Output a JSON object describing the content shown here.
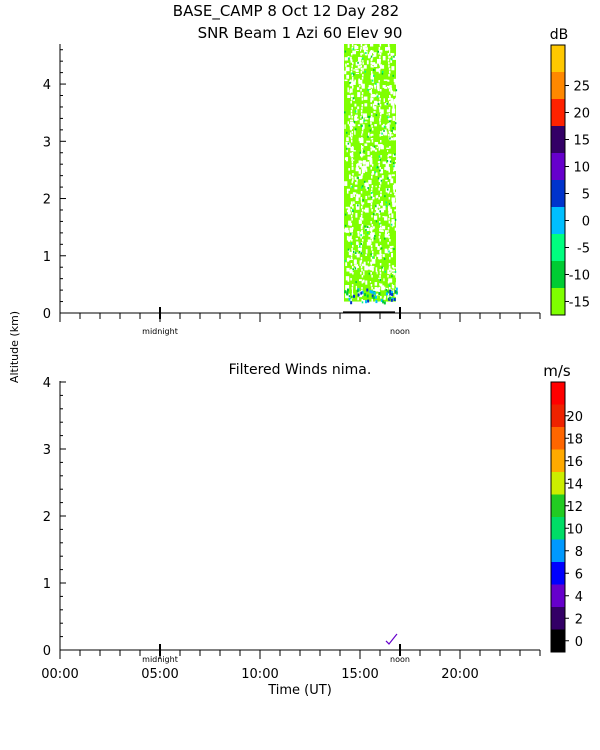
{
  "header": {
    "title_line1": "BASE_CAMP   8 Oct 12 Day 282",
    "title_line2": "SNR Beam  1 Azi  60 Elev 90"
  },
  "y_axis_label": "Altitude (km)",
  "x_axis_label": "Time (UT)",
  "time_markers": [
    "midnight",
    "noon"
  ],
  "colors": {
    "snr_scale": [
      "#7fff00",
      "#00cc33",
      "#00ff7f",
      "#00bfff",
      "#0033cc",
      "#6600cc",
      "#330066",
      "#ff2200",
      "#ff8800",
      "#ffc800"
    ],
    "wind_scale": [
      "#000000",
      "#330066",
      "#6600cc",
      "#0000ff",
      "#0099ff",
      "#00dd66",
      "#22cc22",
      "#ccee00",
      "#ffaa00",
      "#ff6600",
      "#ee2200",
      "#ff0000"
    ]
  },
  "chart_data": [
    {
      "type": "heatmap",
      "title": "SNR Beam  1 Azi  60 Elev 90",
      "ylabel": "Altitude (km)",
      "xlim": [
        0,
        24
      ],
      "ylim": [
        0,
        4.7
      ],
      "y_ticks": [
        "0",
        "1",
        "2",
        "3",
        "4"
      ],
      "data_coverage": {
        "time_start": 14.2,
        "time_end": 16.8,
        "alt_min": 0.2,
        "alt_max": 4.7
      },
      "colorbar": {
        "unit": "dB",
        "labels": [
          "-15",
          "-10",
          "-5",
          "0",
          "5",
          "10",
          "15",
          "20",
          "25"
        ],
        "range": [
          -15,
          30
        ]
      },
      "dominant_value_db": -15
    },
    {
      "type": "heatmap",
      "title": "Filtered Winds nima.",
      "ylabel": "Altitude (km)",
      "xlabel": "Time (UT)",
      "xlim": [
        0,
        24
      ],
      "ylim": [
        0,
        4
      ],
      "x_ticks": [
        "00:00",
        "05:00",
        "10:00",
        "15:00",
        "20:00"
      ],
      "y_ticks": [
        "0",
        "1",
        "2",
        "3",
        "4"
      ],
      "colorbar": {
        "unit": "m/s",
        "labels": [
          "0",
          "2",
          "4",
          "6",
          "8",
          "10",
          "12",
          "14",
          "16",
          "18",
          "20"
        ],
        "range": [
          0,
          22
        ]
      },
      "wind_barbs": [
        {
          "time": 16.6,
          "altitude": 0.18,
          "speed": 4
        }
      ]
    }
  ]
}
